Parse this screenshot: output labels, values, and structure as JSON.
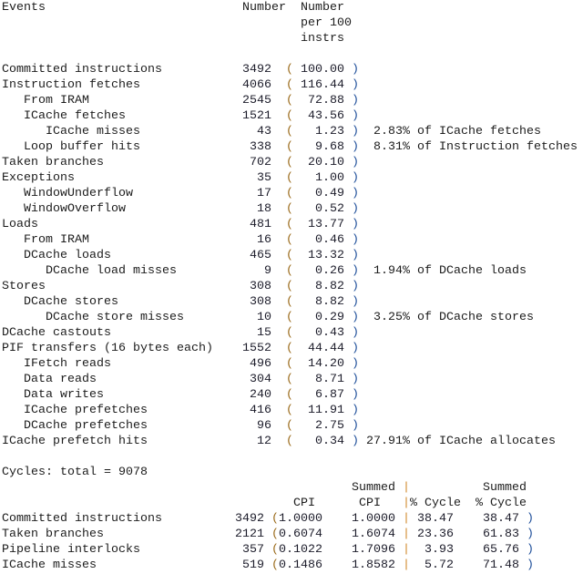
{
  "header": {
    "events": "Events",
    "number": "Number",
    "per100_line1": "Number",
    "per100_line2": "per 100",
    "per100_line3": "instrs"
  },
  "events": [
    {
      "label": "Committed instructions",
      "indent": 0,
      "number": "3492",
      "per100": "100.00",
      "note": ""
    },
    {
      "label": "Instruction fetches",
      "indent": 0,
      "number": "4066",
      "per100": "116.44",
      "note": ""
    },
    {
      "label": "From IRAM",
      "indent": 1,
      "number": "2545",
      "per100": "72.88",
      "note": ""
    },
    {
      "label": "ICache fetches",
      "indent": 1,
      "number": "1521",
      "per100": "43.56",
      "note": ""
    },
    {
      "label": "ICache misses",
      "indent": 2,
      "number": "43",
      "per100": "1.23",
      "note": "2.83% of ICache fetches"
    },
    {
      "label": "Loop buffer hits",
      "indent": 1,
      "number": "338",
      "per100": "9.68",
      "note": "8.31% of Instruction fetches"
    },
    {
      "label": "Taken branches",
      "indent": 0,
      "number": "702",
      "per100": "20.10",
      "note": ""
    },
    {
      "label": "Exceptions",
      "indent": 0,
      "number": "35",
      "per100": "1.00",
      "note": ""
    },
    {
      "label": "WindowUnderflow",
      "indent": 1,
      "number": "17",
      "per100": "0.49",
      "note": ""
    },
    {
      "label": "WindowOverflow",
      "indent": 1,
      "number": "18",
      "per100": "0.52",
      "note": ""
    },
    {
      "label": "Loads",
      "indent": 0,
      "number": "481",
      "per100": "13.77",
      "note": ""
    },
    {
      "label": "From IRAM",
      "indent": 1,
      "number": "16",
      "per100": "0.46",
      "note": ""
    },
    {
      "label": "DCache loads",
      "indent": 1,
      "number": "465",
      "per100": "13.32",
      "note": ""
    },
    {
      "label": "DCache load misses",
      "indent": 2,
      "number": "9",
      "per100": "0.26",
      "note": "1.94% of DCache loads"
    },
    {
      "label": "Stores",
      "indent": 0,
      "number": "308",
      "per100": "8.82",
      "note": ""
    },
    {
      "label": "DCache stores",
      "indent": 1,
      "number": "308",
      "per100": "8.82",
      "note": ""
    },
    {
      "label": "DCache store misses",
      "indent": 2,
      "number": "10",
      "per100": "0.29",
      "note": "3.25% of DCache stores"
    },
    {
      "label": "DCache castouts",
      "indent": 0,
      "number": "15",
      "per100": "0.43",
      "note": ""
    },
    {
      "label": "PIF transfers (16 bytes each)",
      "indent": 0,
      "number": "1552",
      "per100": "44.44",
      "note": ""
    },
    {
      "label": "IFetch reads",
      "indent": 1,
      "number": "496",
      "per100": "14.20",
      "note": ""
    },
    {
      "label": "Data reads",
      "indent": 1,
      "number": "304",
      "per100": "8.71",
      "note": ""
    },
    {
      "label": "Data writes",
      "indent": 1,
      "number": "240",
      "per100": "6.87",
      "note": ""
    },
    {
      "label": "ICache prefetches",
      "indent": 1,
      "number": "416",
      "per100": "11.91",
      "note": ""
    },
    {
      "label": "DCache prefetches",
      "indent": 1,
      "number": "96",
      "per100": "2.75",
      "note": ""
    },
    {
      "label": "ICache prefetch hits",
      "indent": 0,
      "number": "12",
      "per100": "0.34",
      "note": "27.91% of ICache allocates"
    }
  ],
  "cycles": {
    "total_line": "Cycles: total = 9078",
    "header": {
      "summed1": "Summed",
      "summed2": "Summed",
      "cpi": "CPI",
      "summed_cpi": "CPI",
      "pct_cycle": "% Cycle",
      "summed_pct_cycle": "% Cycle"
    },
    "rows": [
      {
        "label": "Committed instructions",
        "number": "3492",
        "cpi": "1.0000",
        "summed_cpi": "1.0000",
        "pct": "38.47",
        "summed_pct": "38.47"
      },
      {
        "label": "Taken branches",
        "number": "2121",
        "cpi": "0.6074",
        "summed_cpi": "1.6074",
        "pct": "23.36",
        "summed_pct": "61.83"
      },
      {
        "label": "Pipeline interlocks",
        "number": "357",
        "cpi": "0.1022",
        "summed_cpi": "1.7096",
        "pct": "3.93",
        "summed_pct": "65.76"
      },
      {
        "label": "ICache misses",
        "number": "519",
        "cpi": "0.1486",
        "summed_cpi": "1.8582",
        "pct": "5.72",
        "summed_pct": "71.48"
      }
    ]
  }
}
